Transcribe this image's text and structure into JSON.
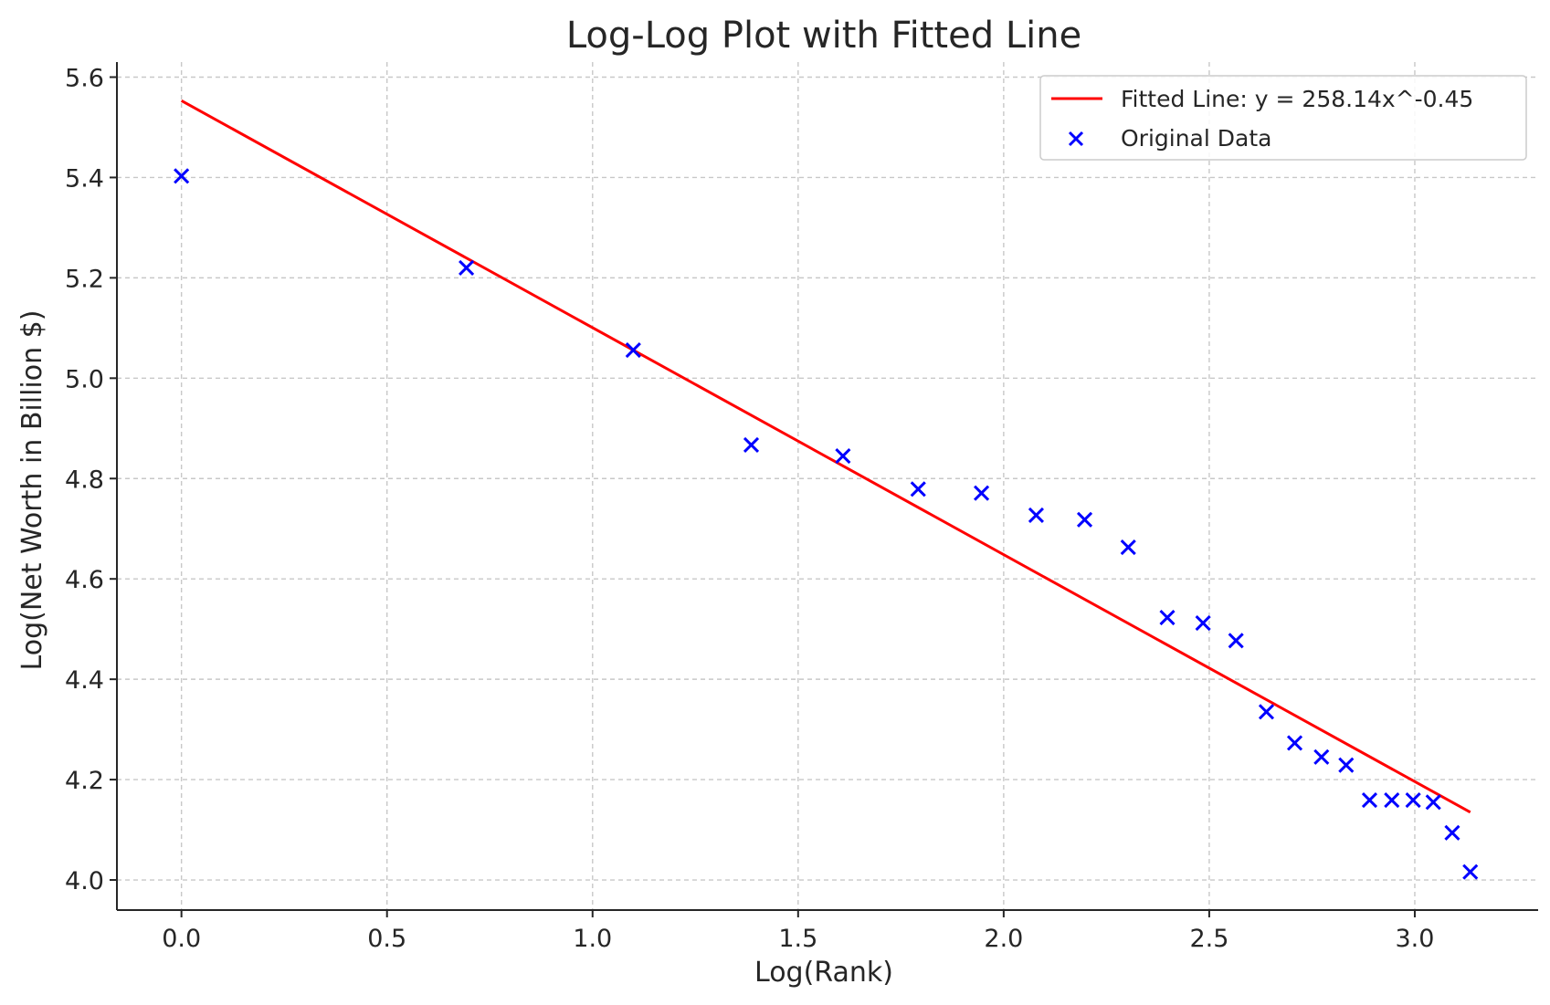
{
  "chart_data": {
    "type": "scatter",
    "title": "Log-Log Plot with Fitted Line",
    "xlabel": "Log(Rank)",
    "ylabel": "Log(Net Worth in Billion $)",
    "xlim": [
      -0.157,
      3.3
    ],
    "ylim": [
      3.94,
      5.63
    ],
    "xticks": [
      0.0,
      0.5,
      1.0,
      1.5,
      2.0,
      2.5,
      3.0
    ],
    "xtick_labels": [
      "0.0",
      "0.5",
      "1.0",
      "1.5",
      "2.0",
      "2.5",
      "3.0"
    ],
    "yticks": [
      4.0,
      4.2,
      4.4,
      4.6,
      4.8,
      5.0,
      5.2,
      5.4,
      5.6
    ],
    "ytick_labels": [
      "4.0",
      "4.2",
      "4.4",
      "4.6",
      "4.8",
      "5.0",
      "5.2",
      "5.4",
      "5.6"
    ],
    "grid": true,
    "legend_position": "top-right",
    "series": [
      {
        "name": "Fitted Line: y = 258.14x^-0.45",
        "kind": "line",
        "color": "#ff0000",
        "x": [
          0.0,
          3.135
        ],
        "y": [
          5.553,
          4.135
        ]
      },
      {
        "name": "Original Data",
        "kind": "scatter",
        "marker": "x",
        "color": "#0000ff",
        "x": [
          0.0,
          0.693,
          1.099,
          1.386,
          1.609,
          1.792,
          1.946,
          2.079,
          2.197,
          2.303,
          2.398,
          2.485,
          2.565,
          2.639,
          2.708,
          2.773,
          2.833,
          2.89,
          2.944,
          2.996,
          3.045,
          3.091,
          3.135
        ],
        "y": [
          5.403,
          5.22,
          5.056,
          4.867,
          4.845,
          4.779,
          4.771,
          4.727,
          4.718,
          4.663,
          4.523,
          4.512,
          4.477,
          4.335,
          4.273,
          4.245,
          4.229,
          4.159,
          4.159,
          4.159,
          4.155,
          4.094,
          4.016
        ]
      }
    ]
  }
}
